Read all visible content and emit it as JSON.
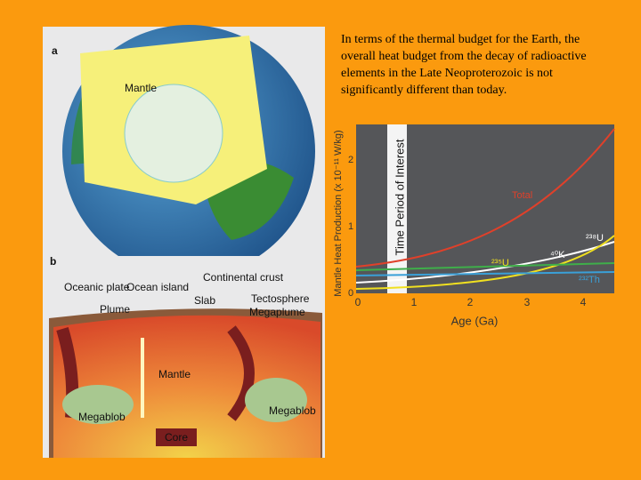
{
  "left_figure": {
    "panel_a": {
      "letter": "a",
      "mantle": "Mantle"
    },
    "panel_b": {
      "letter": "b",
      "labels": [
        "Oceanic plate",
        "Ocean island",
        "Plume",
        "Slab",
        "Continental crust",
        "Tectosphere",
        "Megaplume",
        "Mantle",
        "Megablob",
        "Megablob",
        "Core"
      ]
    }
  },
  "caption": "In terms of the thermal budget for the Earth, the overall heat budget from the decay of radioactive elements in the Late Neoproterozoic is not significantly different than today.",
  "plot": {
    "y_axis_label": "Mantle Heat Production (x 10⁻¹¹ W/kg)",
    "y_tick_labels": [
      "0",
      "1",
      "2"
    ],
    "x_tick_labels": [
      "0",
      "1",
      "2",
      "3",
      "4"
    ],
    "x_axis_label": "Age (Ga)",
    "band_label": "Time Period of Interest",
    "curve_labels": [
      "Total",
      "²³⁸U",
      "⁴⁰K",
      "²³⁵U",
      "²³²Th"
    ]
  }
}
